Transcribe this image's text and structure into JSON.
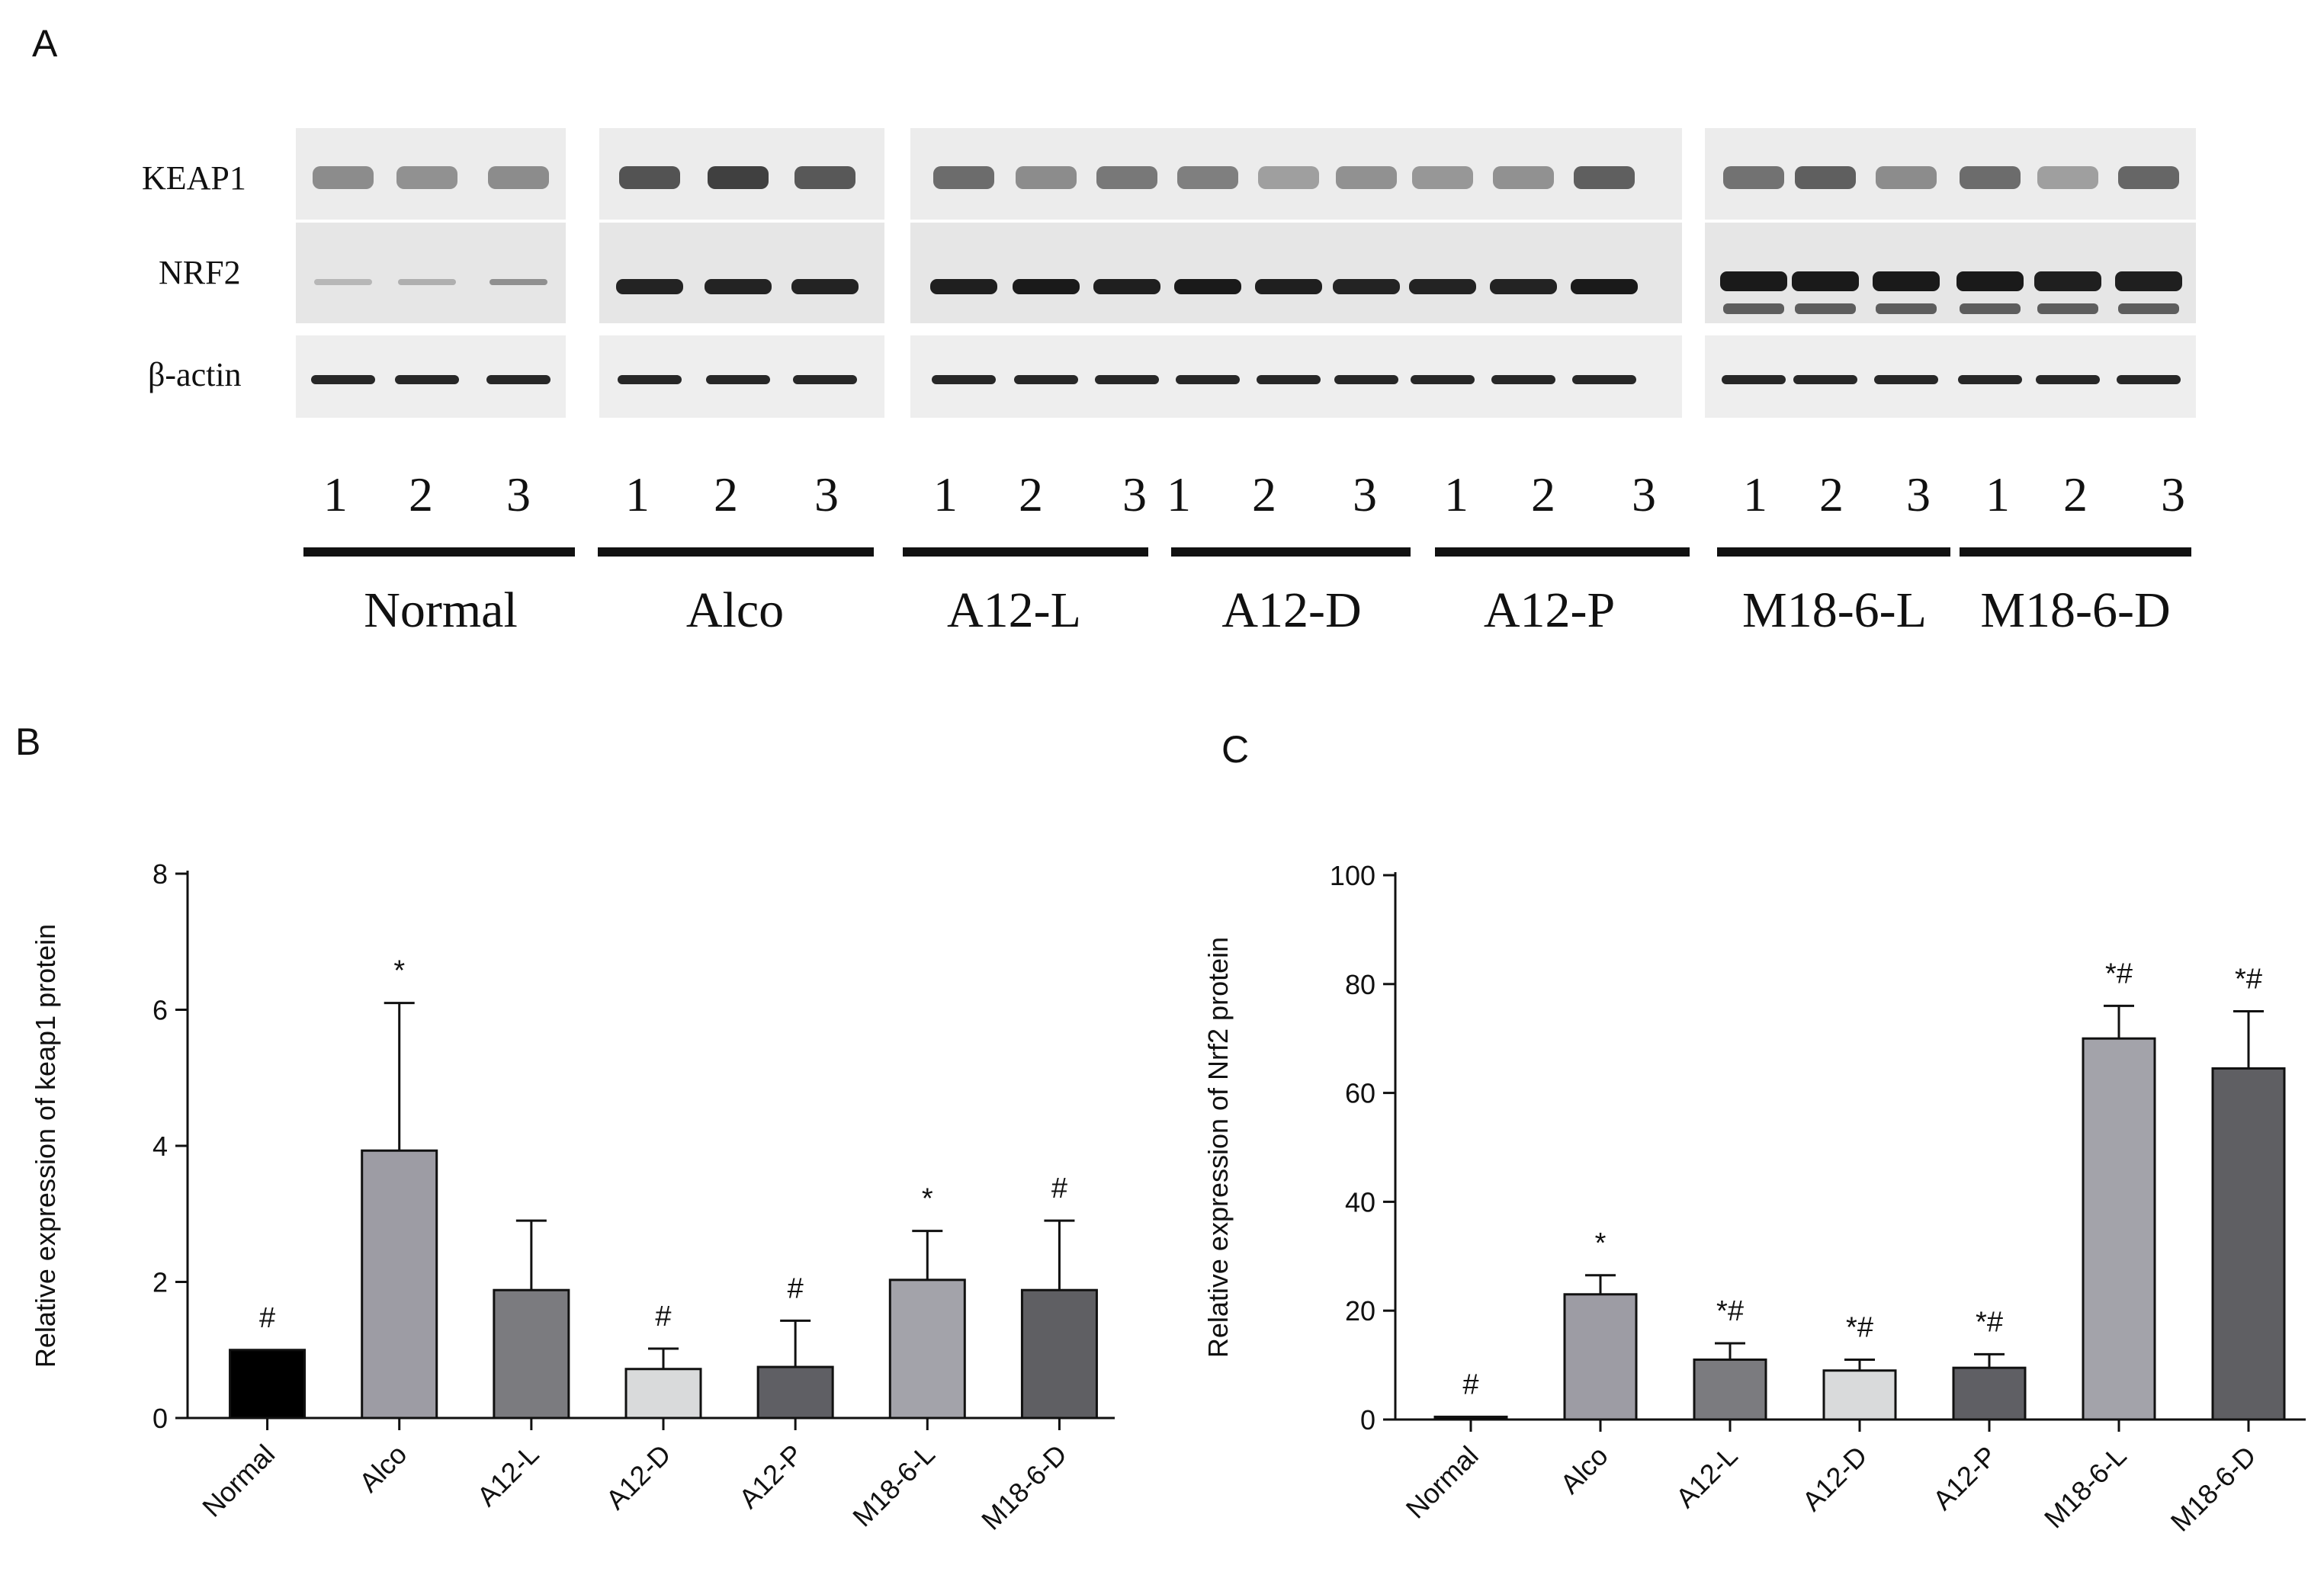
{
  "panel_a": {
    "letter": "A",
    "rows": [
      "KEAP1",
      "NRF2",
      "β-actin"
    ],
    "lanes": [
      "1",
      "2",
      "3"
    ],
    "groups": [
      {
        "label": "Normal",
        "lanes": [
          "1",
          "2",
          "3"
        ]
      },
      {
        "label": "Alco",
        "lanes": [
          "1",
          "2",
          "3"
        ]
      },
      {
        "label": "A12-L",
        "lanes": [
          "1",
          "2",
          "3"
        ]
      },
      {
        "label": "A12-D",
        "lanes": [
          "1",
          "2",
          "3"
        ]
      },
      {
        "label": "A12-P",
        "lanes": [
          "1",
          "2",
          "3"
        ]
      },
      {
        "label": "M18-6-L",
        "lanes": [
          "1",
          "2",
          "3"
        ]
      },
      {
        "label": "M18-6-D",
        "lanes": [
          "1",
          "2",
          "3"
        ]
      }
    ]
  },
  "panel_b": {
    "letter": "B"
  },
  "panel_c": {
    "letter": "C"
  },
  "chart_data": [
    {
      "type": "bar",
      "panel": "B",
      "ylabel": "Relative expression of keap1 protein",
      "ylim": [
        0,
        8
      ],
      "yticks": [
        0,
        2,
        4,
        6,
        8
      ],
      "categories": [
        "Normal",
        "Alco",
        "A12-L",
        "A12-D",
        "A12-P",
        "M18-6-L",
        "M18-6-D"
      ],
      "values": [
        1.0,
        3.93,
        1.88,
        0.72,
        0.75,
        2.03,
        1.88
      ],
      "errors": [
        0,
        2.17,
        1.02,
        0.3,
        0.68,
        0.72,
        1.02
      ],
      "annotations": [
        "#",
        "*",
        "",
        "#",
        "#",
        "*",
        "#"
      ],
      "colors": [
        "#000000",
        "#9d9ca4",
        "#7b7b7f",
        "#d9dadb",
        "#5f5f64",
        "#a3a3aa",
        "#5f5f63"
      ]
    },
    {
      "type": "bar",
      "panel": "C",
      "ylabel": "Relative expression of Nrf2 protein",
      "ylim": [
        0,
        100
      ],
      "yticks": [
        0,
        20,
        40,
        60,
        80,
        100
      ],
      "categories": [
        "Normal",
        "Alco",
        "A12-L",
        "A12-D",
        "A12-P",
        "M18-6-L",
        "M18-6-D"
      ],
      "values": [
        0.5,
        23.0,
        11.0,
        9.0,
        9.5,
        70.0,
        64.5
      ],
      "errors": [
        0,
        3.5,
        3.0,
        2.0,
        2.5,
        6.0,
        10.5
      ],
      "annotations": [
        "#",
        "*",
        "*#",
        "*#",
        "*#",
        "*#",
        "*#"
      ],
      "colors": [
        "#000000",
        "#9d9ca4",
        "#7b7b7f",
        "#d9dadb",
        "#5f5f64",
        "#a3a3aa",
        "#5f5f63"
      ]
    }
  ]
}
